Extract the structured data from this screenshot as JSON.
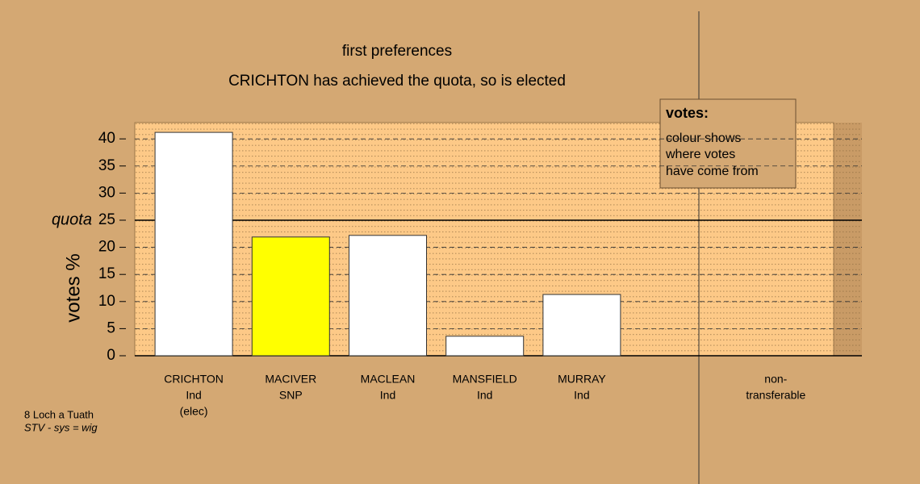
{
  "chart_data": {
    "type": "bar",
    "title": "first preferences",
    "subtitle": "CRICHTON has achieved the quota, so is elected",
    "y_label": "votes %",
    "categories": [
      [
        "CRICHTON",
        "Ind",
        "(elec)"
      ],
      [
        "MACIVER",
        "SNP"
      ],
      [
        "MACLEAN",
        "Ind"
      ],
      [
        "MANSFIELD",
        "Ind"
      ],
      [
        "MURRAY",
        "Ind"
      ],
      [
        "non-",
        "transferable"
      ]
    ],
    "values": [
      41.2,
      21.9,
      22.2,
      3.6,
      11.3,
      null
    ],
    "colors": [
      "#ffffff",
      "#ffff00",
      "#ffffff",
      "#ffffff",
      "#ffffff",
      "#ffffff"
    ],
    "ylim": [
      0,
      43
    ],
    "yticks": [
      0,
      5,
      10,
      15,
      20,
      25,
      30,
      35,
      40
    ],
    "grid": true,
    "quota": {
      "value": 25,
      "label": "quota"
    },
    "legend": {
      "title": "votes:",
      "lines": [
        "colour shows",
        "where votes",
        "have come from"
      ]
    },
    "footer": [
      "8 Loch a Tuath",
      "STV - sys = wig"
    ]
  }
}
